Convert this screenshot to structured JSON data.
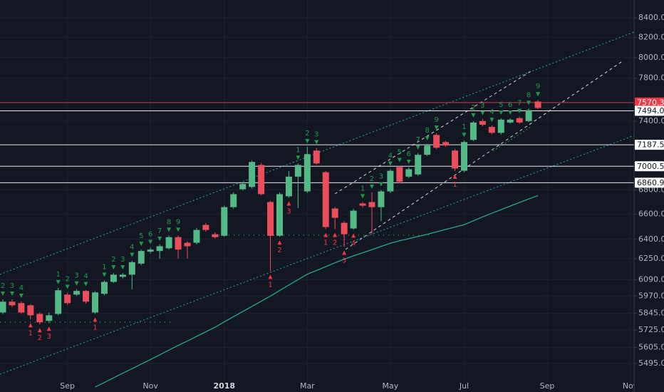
{
  "chart_data": {
    "type": "candlestick",
    "log": true,
    "grid": true,
    "up_color": "#53b987",
    "down_color": "#eb4d5c",
    "categories": [
      null,
      null,
      null,
      null,
      null,
      null,
      null,
      null,
      null,
      null,
      null,
      null,
      null,
      null,
      null,
      null,
      null,
      null,
      null,
      null,
      null,
      null,
      null,
      null,
      null,
      null,
      null,
      null,
      null,
      null,
      null,
      null,
      null,
      null,
      null,
      null,
      null,
      null,
      null,
      null,
      null,
      null,
      null,
      null,
      null,
      null,
      null,
      null,
      null,
      null,
      null,
      null,
      null,
      null,
      null,
      null,
      null,
      null,
      null
    ],
    "open": [
      5850,
      5928,
      5918,
      5902,
      5840,
      5790,
      5840,
      5980,
      5980,
      6007,
      5850,
      5986,
      6074,
      6112,
      6128,
      6212,
      6304,
      6309,
      6330,
      6417,
      6373,
      6373,
      6514,
      6440,
      6428,
      6658,
      6806,
      6825,
      7012,
      6700,
      6428,
      6747,
      6912,
      6788,
      7137,
      6950,
      6647,
      6531,
      6486,
      6688,
      6700,
      6658,
      6788,
      6994,
      6912,
      6931,
      7100,
      7275,
      7212,
      7137,
      6962,
      7231,
      7400,
      7347,
      7294,
      7387,
      7427,
      7400,
      7580
    ],
    "high": [
      5945,
      5945,
      5930,
      5910,
      5850,
      5850,
      6030,
      5995,
      6020,
      6015,
      6005,
      6085,
      6140,
      6140,
      6235,
      6320,
      6335,
      6360,
      6430,
      6430,
      6385,
      6490,
      6530,
      6455,
      6670,
      6780,
      6860,
      7050,
      7030,
      6710,
      6780,
      6960,
      7025,
      7170,
      7160,
      6960,
      6660,
      6545,
      6645,
      6700,
      6780,
      6800,
      6975,
      7005,
      6990,
      7115,
      7195,
      7290,
      7225,
      7150,
      7225,
      7400,
      7420,
      7360,
      7425,
      7425,
      7440,
      7515,
      7595
    ],
    "low": [
      5840,
      5890,
      5840,
      5800,
      5765,
      5775,
      5830,
      5905,
      5970,
      5915,
      5840,
      5975,
      6065,
      6100,
      6020,
      6200,
      6290,
      6250,
      6320,
      6250,
      6250,
      6360,
      6460,
      6405,
      6420,
      6645,
      6795,
      6810,
      6755,
      6155,
      6420,
      6735,
      6650,
      6775,
      7015,
      6480,
      6480,
      6340,
      6475,
      6655,
      6440,
      6545,
      6775,
      6855,
      6900,
      6920,
      7090,
      7150,
      7170,
      6960,
      6950,
      7220,
      7355,
      7280,
      7280,
      7375,
      7375,
      7390,
      7510
    ],
    "close": [
      5928,
      5902,
      5850,
      5830,
      5780,
      5830,
      6012,
      5918,
      6007,
      5928,
      5996,
      6074,
      6128,
      6128,
      6223,
      6309,
      6320,
      6346,
      6417,
      6320,
      6346,
      6474,
      6474,
      6417,
      6658,
      6765,
      6850,
      7038,
      6765,
      6428,
      6765,
      6912,
      7012,
      7106,
      7025,
      6497,
      6571,
      6440,
      6629,
      6670,
      6658,
      6788,
      6962,
      6869,
      6975,
      7100,
      7181,
      7162,
      7181,
      6981,
      7212,
      7387,
      7367,
      7294,
      7413,
      7413,
      7387,
      7500,
      7520
    ],
    "ma": {
      "color": "#26a69a",
      "values": [
        null,
        null,
        null,
        null,
        null,
        null,
        null,
        null,
        null,
        null,
        5338,
        5368,
        5399,
        5430,
        5460,
        5491,
        5522,
        5554,
        5586,
        5618,
        5649,
        5681,
        5713,
        5745,
        5783,
        5820,
        5857,
        5894,
        5931,
        5969,
        6010,
        6051,
        6091,
        6132,
        6160,
        6189,
        6218,
        6246,
        6271,
        6295,
        6320,
        6344,
        6369,
        6388,
        6405,
        6423,
        6440,
        6459,
        6478,
        6497,
        6516,
        6547,
        6578,
        6608,
        6637,
        6667,
        6696,
        6725,
        6754
      ]
    },
    "xlim": [
      -0.31,
      68.42
    ],
    "xticks": [
      {
        "value": 7,
        "label": "Sep"
      },
      {
        "value": 16,
        "label": "Nov"
      },
      {
        "value": 24,
        "label": "2018"
      },
      {
        "value": 33,
        "label": "Mar"
      },
      {
        "value": 42,
        "label": "May"
      },
      {
        "value": 50,
        "label": "Jul"
      },
      {
        "value": 59,
        "label": "Sep"
      },
      {
        "value": 68,
        "label": "Nov"
      }
    ],
    "ylim": [
      5306,
      8586
    ],
    "yticks": [
      {
        "value": 8400,
        "label": "8400.0"
      },
      {
        "value": 8200,
        "label": "8200.0"
      },
      {
        "value": 8000,
        "label": "8000.0"
      },
      {
        "value": 7800,
        "label": "7800.0"
      },
      {
        "value": 7400,
        "label": "7400.0"
      },
      {
        "value": 6800,
        "label": "6800.0"
      },
      {
        "value": 6600,
        "label": "6600.0"
      },
      {
        "value": 6400,
        "label": "6400.0"
      },
      {
        "value": 6250,
        "label": "6250.0"
      },
      {
        "value": 6090,
        "label": "6090.0"
      },
      {
        "value": 5970,
        "label": "5970.0"
      },
      {
        "value": 5845,
        "label": "5845.0"
      },
      {
        "value": 5725,
        "label": "5725.0"
      },
      {
        "value": 5605,
        "label": "5605.0"
      },
      {
        "value": 5495,
        "label": "5495.0"
      }
    ],
    "levels": [
      {
        "value": 7570.3,
        "label": "7570.3",
        "color": "#f23645"
      },
      {
        "value": 7494.0,
        "label": "7494.0",
        "color": "#ffffff"
      },
      {
        "value": 7187.5,
        "label": "7187.5",
        "color": "#ffffff"
      },
      {
        "value": 7000.5,
        "label": "7000.5",
        "color": "#ffffff"
      },
      {
        "value": 6860.9,
        "label": "6860.9",
        "color": "#ffffff"
      }
    ],
    "td_colors": {
      "above": "#1e9b4c",
      "below": "#f23645"
    },
    "td_labels": [
      {
        "bar": 0,
        "text": "2",
        "side": "above"
      },
      {
        "bar": 1,
        "text": "3",
        "side": "above"
      },
      {
        "bar": 2,
        "text": "4",
        "side": "above"
      },
      {
        "bar": 3,
        "text": "1",
        "side": "below"
      },
      {
        "bar": 4,
        "text": "2",
        "side": "below"
      },
      {
        "bar": 5,
        "text": "3",
        "side": "below"
      },
      {
        "bar": 6,
        "text": "1",
        "side": "above"
      },
      {
        "bar": 7,
        "text": "2",
        "side": "above"
      },
      {
        "bar": 8,
        "text": "3",
        "side": "above"
      },
      {
        "bar": 9,
        "text": "4",
        "side": "above"
      },
      {
        "bar": 10,
        "text": "1",
        "side": "below"
      },
      {
        "bar": 11,
        "text": "1",
        "side": "above"
      },
      {
        "bar": 12,
        "text": "2",
        "side": "above"
      },
      {
        "bar": 13,
        "text": "3",
        "side": "above"
      },
      {
        "bar": 14,
        "text": "4",
        "side": "above"
      },
      {
        "bar": 15,
        "text": "5",
        "side": "above"
      },
      {
        "bar": 16,
        "text": "6",
        "side": "above"
      },
      {
        "bar": 17,
        "text": "7",
        "side": "above"
      },
      {
        "bar": 18,
        "text": "8",
        "side": "above"
      },
      {
        "bar": 19,
        "text": "9",
        "side": "above"
      },
      {
        "bar": 29,
        "text": "1",
        "side": "below"
      },
      {
        "bar": 30,
        "text": "2",
        "side": "below"
      },
      {
        "bar": 31,
        "text": "3",
        "side": "below"
      },
      {
        "bar": 32,
        "text": "1",
        "side": "above"
      },
      {
        "bar": 33,
        "text": "2",
        "side": "above"
      },
      {
        "bar": 34,
        "text": "3",
        "side": "above"
      },
      {
        "bar": 35,
        "text": "1",
        "side": "below"
      },
      {
        "bar": 36,
        "text": "2",
        "side": "below"
      },
      {
        "bar": 37,
        "text": "3",
        "side": "below"
      },
      {
        "bar": 38,
        "text": "4",
        "side": "below"
      },
      {
        "bar": 39,
        "text": "1",
        "side": "above"
      },
      {
        "bar": 40,
        "text": "2",
        "side": "above"
      },
      {
        "bar": 41,
        "text": "3",
        "side": "above"
      },
      {
        "bar": 42,
        "text": "4",
        "side": "above"
      },
      {
        "bar": 43,
        "text": "5",
        "side": "above"
      },
      {
        "bar": 44,
        "text": "6",
        "side": "above"
      },
      {
        "bar": 45,
        "text": "7",
        "side": "above"
      },
      {
        "bar": 46,
        "text": "8",
        "side": "above"
      },
      {
        "bar": 47,
        "text": "9",
        "side": "above"
      },
      {
        "bar": 49,
        "text": "1",
        "side": "below"
      },
      {
        "bar": 50,
        "text": "1",
        "side": "above"
      },
      {
        "bar": 51,
        "text": "2",
        "side": "above"
      },
      {
        "bar": 52,
        "text": "3",
        "side": "above"
      },
      {
        "bar": 53,
        "text": "4",
        "side": "above"
      },
      {
        "bar": 54,
        "text": "5",
        "side": "above"
      },
      {
        "bar": 55,
        "text": "6",
        "side": "above"
      },
      {
        "bar": 56,
        "text": "7",
        "side": "above"
      },
      {
        "bar": 57,
        "text": "8",
        "side": "above"
      },
      {
        "bar": 58,
        "text": "9",
        "side": "above"
      }
    ]
  }
}
